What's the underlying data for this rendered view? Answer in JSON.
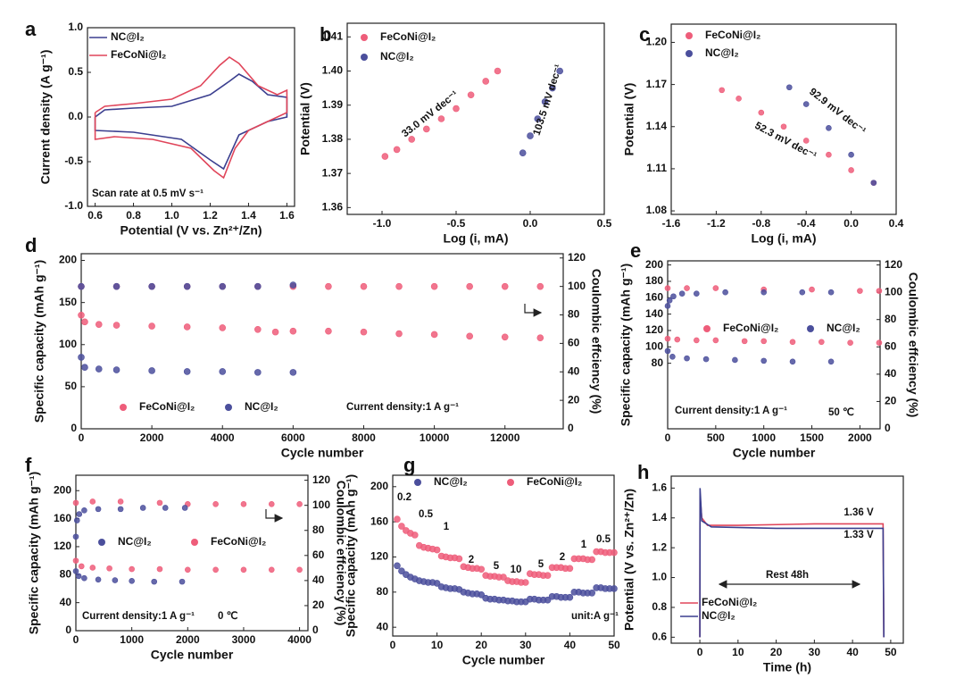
{
  "chart_data": [
    {
      "type": "line",
      "label": "a",
      "x_label": "Potential (V vs. Zn²⁺/Zn)",
      "y_label": "Current density (A g⁻¹)",
      "xlim": [
        0.56,
        1.64
      ],
      "xticks": [
        0.6,
        0.8,
        {
          "value": 1.0,
          "label": "1.0"
        },
        1.2,
        1.4,
        1.6
      ],
      "ylim": [
        -1.0,
        1.0
      ],
      "yticks": [
        {
          "value": -1.0,
          "label": "-1.0"
        },
        -0.5,
        {
          "value": 0.0,
          "label": "0.0"
        },
        0.5,
        {
          "value": 1.0,
          "label": "1.0"
        }
      ],
      "annotations": [
        "Scan rate at 0.5 mV s⁻¹"
      ],
      "series": [
        {
          "name": "NC@I₂",
          "color": "#3b3f8f",
          "x": [
            0.6,
            0.65,
            0.8,
            1.0,
            1.2,
            1.3,
            1.35,
            1.42,
            1.5,
            1.6,
            1.6,
            1.5,
            1.35,
            1.27,
            1.2,
            1.05,
            0.8,
            0.6,
            0.6
          ],
          "values": [
            0.0,
            0.08,
            0.1,
            0.12,
            0.25,
            0.4,
            0.48,
            0.4,
            0.25,
            0.22,
            0.0,
            -0.05,
            -0.2,
            -0.58,
            -0.48,
            -0.25,
            -0.17,
            -0.15,
            0.0
          ]
        },
        {
          "name": "FeCoNi@I₂",
          "color": "#e0455a",
          "x": [
            0.6,
            0.65,
            0.8,
            1.0,
            1.15,
            1.25,
            1.3,
            1.35,
            1.45,
            1.55,
            1.6,
            1.6,
            1.5,
            1.4,
            1.33,
            1.27,
            1.22,
            1.1,
            0.9,
            0.7,
            0.6,
            0.6
          ],
          "values": [
            0.05,
            0.12,
            0.15,
            0.2,
            0.35,
            0.58,
            0.67,
            0.6,
            0.35,
            0.25,
            0.3,
            0.05,
            -0.05,
            -0.15,
            -0.35,
            -0.68,
            -0.6,
            -0.35,
            -0.25,
            -0.22,
            -0.25,
            0.05
          ]
        }
      ]
    },
    {
      "type": "scatter",
      "label": "b",
      "x_label": "Log (i, mA)",
      "y_label": "Potential (V)",
      "xlim": [
        -1.235,
        0.5
      ],
      "xticks": [
        {
          "value": -1.0,
          "label": "-1.0"
        },
        -0.5,
        {
          "value": 0.0,
          "label": "0.0"
        },
        0.5
      ],
      "ylim": [
        1.358,
        1.414
      ],
      "yticks": [
        1.36,
        1.37,
        1.38,
        1.39,
        {
          "value": 1.4,
          "label": "1.40"
        },
        1.41
      ],
      "annotations": [
        "33.0 mV dec⁻¹",
        "103.5 mV dec⁻¹"
      ],
      "series": [
        {
          "name": "FeCoNi@I₂",
          "color": "#ee5d7a",
          "x": [
            -0.98,
            -0.9,
            -0.8,
            -0.7,
            -0.6,
            -0.5,
            -0.4,
            -0.3,
            -0.22
          ],
          "values": [
            1.375,
            1.377,
            1.38,
            1.383,
            1.386,
            1.389,
            1.393,
            1.397,
            1.4
          ]
        },
        {
          "name": "NC@I₂",
          "color": "#4b4f9c",
          "x": [
            -0.05,
            0.0,
            0.05,
            0.1,
            0.15,
            0.2
          ],
          "values": [
            1.376,
            1.381,
            1.386,
            1.391,
            1.395,
            1.4
          ]
        }
      ]
    },
    {
      "type": "scatter",
      "label": "c",
      "x_label": "Log (i, mA)",
      "y_label": "Potential (V)",
      "xlim": [
        -1.6,
        0.4
      ],
      "xticks": [
        -1.6,
        -1.2,
        -0.8,
        -0.4,
        {
          "value": 0.0,
          "label": "0.0"
        },
        0.4
      ],
      "ylim": [
        1.0775,
        1.213
      ],
      "yticks": [
        1.08,
        1.11,
        1.14,
        1.17,
        {
          "value": 1.2,
          "label": "1.20"
        }
      ],
      "annotations": [
        "92.9 mV dec⁻¹",
        "52.3 mV dec⁻¹"
      ],
      "series": [
        {
          "name": "FeCoNi@I₂",
          "color": "#ee5d7a",
          "x": [
            -1.15,
            -1.0,
            -0.8,
            -0.6,
            -0.4,
            -0.2,
            0.0,
            0.2
          ],
          "values": [
            1.166,
            1.16,
            1.15,
            1.14,
            1.13,
            1.12,
            1.109,
            1.1
          ]
        },
        {
          "name": "NC@I₂",
          "color": "#4b4f9c",
          "x": [
            -0.55,
            -0.4,
            -0.2,
            0.0,
            0.2
          ],
          "values": [
            1.168,
            1.156,
            1.139,
            1.12,
            1.1
          ]
        }
      ]
    },
    {
      "type": "scatter",
      "label": "d",
      "x_label": "Cycle number",
      "y_label": "Specific capacity (mAh g⁻¹)",
      "y2_label": "Coulombic effciency (%)",
      "xlim": [
        0,
        13650
      ],
      "xticks": [
        0,
        2000,
        4000,
        6000,
        8000,
        10000,
        12000
      ],
      "ylim": [
        0,
        208
      ],
      "yticks": [
        0,
        50,
        100,
        150,
        200
      ],
      "y2lim": [
        0,
        123
      ],
      "y2ticks": [
        0,
        20,
        40,
        60,
        80,
        100,
        120
      ],
      "annotations": [
        "Current density:1 A g⁻¹"
      ],
      "series": [
        {
          "name": "FeCoNi@I₂",
          "color": "#ee5d7a",
          "x": [
            0,
            100,
            500,
            1000,
            2000,
            3000,
            4000,
            5000,
            5500,
            6000,
            7000,
            8000,
            9000,
            10000,
            11000,
            12000,
            13000
          ],
          "values": [
            135,
            127,
            124,
            123,
            122,
            121,
            120,
            118,
            115,
            116,
            116,
            115,
            113,
            112,
            110,
            109,
            108
          ]
        },
        {
          "name": "NC@I₂",
          "color": "#4b4f9c",
          "x": [
            0,
            100,
            500,
            1000,
            2000,
            3000,
            4000,
            5000,
            6000
          ],
          "values": [
            85,
            73,
            71,
            70,
            69,
            68,
            68,
            67,
            67
          ]
        },
        {
          "color": "#ee5d7a",
          "axis": "y2",
          "x": [
            0,
            1000,
            2000,
            3000,
            4000,
            5000,
            6000,
            7000,
            8000,
            9000,
            10000,
            11000,
            12000,
            13000
          ],
          "values": [
            100,
            100,
            100,
            100,
            100,
            100,
            100,
            100,
            100,
            100,
            100,
            100,
            100,
            100
          ]
        },
        {
          "color": "#4b4f9c",
          "axis": "y2",
          "x": [
            0,
            1000,
            2000,
            3000,
            4000,
            5000,
            6000
          ],
          "values": [
            100,
            100,
            100,
            100,
            100,
            100,
            101
          ]
        }
      ]
    },
    {
      "type": "scatter",
      "label": "e",
      "x_label": "Cycle number",
      "y_label": "Specific capacity (mAh g⁻¹)",
      "y2_label": "Coulombic effciency (%)",
      "xlim": [
        0,
        2210
      ],
      "xticks": [
        0,
        500,
        1000,
        1500,
        2000
      ],
      "ylim": [
        0,
        205
      ],
      "yticks": [
        80,
        100,
        120,
        140,
        160,
        180,
        200
      ],
      "y2lim": [
        0,
        123
      ],
      "y2ticks": [
        0,
        20,
        40,
        60,
        80,
        100,
        120
      ],
      "annotations": [
        "Current density:1 A g⁻¹",
        "50 ℃"
      ],
      "series": [
        {
          "name": "FeCoNi@I₂",
          "color": "#ee5d7a",
          "x": [
            0,
            100,
            300,
            500,
            800,
            1000,
            1300,
            1600,
            1900,
            2200
          ],
          "values": [
            110,
            109,
            108,
            108,
            107,
            107,
            106,
            106,
            105,
            105
          ]
        },
        {
          "name": "NC@I₂",
          "color": "#4b4f9c",
          "x": [
            0,
            50,
            200,
            400,
            700,
            1000,
            1300,
            1700
          ],
          "values": [
            95,
            88,
            86,
            85,
            84,
            83,
            82,
            82
          ]
        },
        {
          "color": "#ee5d7a",
          "axis": "y2",
          "x": [
            0,
            200,
            500,
            1000,
            1500,
            2000,
            2200
          ],
          "values": [
            103,
            103,
            103,
            102,
            102,
            101,
            101
          ]
        },
        {
          "color": "#4b4f9c",
          "axis": "y2",
          "x": [
            0,
            20,
            60,
            150,
            300,
            600,
            1000,
            1400,
            1700
          ],
          "values": [
            90,
            94,
            97,
            99,
            99,
            100,
            100,
            100,
            100
          ]
        }
      ]
    },
    {
      "type": "scatter",
      "label": "f",
      "x_label": "Cycle number",
      "y_label": "Specific capacity (mAh g⁻¹)",
      "y2_label": "Coulombic effciency (%)",
      "xlim": [
        0,
        4150
      ],
      "xticks": [
        0,
        1000,
        2000,
        3000,
        4000
      ],
      "ylim": [
        0,
        222
      ],
      "yticks": [
        0,
        40,
        80,
        120,
        160,
        200
      ],
      "y2lim": [
        0,
        124
      ],
      "y2ticks": [
        0,
        20,
        40,
        60,
        80,
        100,
        120
      ],
      "annotations": [
        "Current density:1 A g⁻¹",
        "0 ℃"
      ],
      "series": [
        {
          "name": "NC@I₂",
          "color": "#4b4f9c",
          "x": [
            0,
            50,
            150,
            400,
            700,
            1000,
            1400,
            1900
          ],
          "values": [
            85,
            78,
            75,
            73,
            72,
            71,
            70,
            70
          ]
        },
        {
          "name": "FeCoNi@I₂",
          "color": "#ee5d7a",
          "x": [
            0,
            100,
            300,
            600,
            1000,
            1500,
            2000,
            2500,
            3000,
            3500,
            4000
          ],
          "values": [
            100,
            92,
            90,
            89,
            88,
            88,
            87,
            87,
            87,
            87,
            87
          ]
        },
        {
          "color": "#ee5d7a",
          "axis": "y2",
          "x": [
            0,
            300,
            800,
            1500,
            2000,
            2500,
            3000,
            3500,
            4000
          ],
          "values": [
            102,
            103,
            103,
            102,
            101,
            101,
            101,
            101,
            101
          ]
        },
        {
          "color": "#4b4f9c",
          "axis": "y2",
          "x": [
            0,
            20,
            60,
            150,
            400,
            800,
            1200,
            1600,
            1950
          ],
          "values": [
            75,
            88,
            93,
            96,
            97,
            97,
            98,
            98,
            98
          ]
        }
      ]
    },
    {
      "type": "scatter",
      "label": "g",
      "x_label": "Cycle number",
      "y_label": "Specific capacity (mAh g⁻¹)",
      "xlim": [
        0,
        50
      ],
      "xticks": [
        0,
        10,
        20,
        30,
        40,
        50
      ],
      "ylim": [
        30,
        213
      ],
      "yticks": [
        40,
        80,
        120,
        160,
        200
      ],
      "annotations": [
        "unit:A g⁻¹"
      ],
      "rate_labels": [
        "0.2",
        "0.5",
        "1",
        "2",
        "5",
        "10",
        "5",
        "2",
        "1",
        "0.5"
      ],
      "x": [
        1,
        2,
        3,
        4,
        5,
        6,
        7,
        8,
        9,
        10,
        11,
        12,
        13,
        14,
        15,
        16,
        17,
        18,
        19,
        20,
        21,
        22,
        23,
        24,
        25,
        26,
        27,
        28,
        29,
        30,
        31,
        32,
        33,
        34,
        35,
        36,
        37,
        38,
        39,
        40,
        41,
        42,
        43,
        44,
        45,
        46,
        47,
        48,
        49,
        50
      ],
      "series": [
        {
          "name": "NC@I₂",
          "color": "#4b4f9c",
          "values": [
            110,
            104,
            100,
            97,
            95,
            93,
            92,
            91,
            91,
            90,
            86,
            85,
            84,
            84,
            83,
            80,
            79,
            78,
            78,
            77,
            73,
            72,
            72,
            71,
            71,
            70,
            70,
            69,
            69,
            69,
            72,
            72,
            71,
            71,
            71,
            75,
            75,
            74,
            74,
            74,
            80,
            80,
            79,
            79,
            79,
            85,
            85,
            84,
            84,
            84
          ]
        },
        {
          "name": "FeCoNi@I₂",
          "color": "#ee5d7a",
          "values": [
            163,
            155,
            150,
            147,
            145,
            133,
            131,
            130,
            129,
            128,
            121,
            120,
            119,
            119,
            118,
            109,
            108,
            107,
            107,
            106,
            99,
            98,
            98,
            97,
            97,
            93,
            92,
            92,
            91,
            91,
            101,
            100,
            100,
            99,
            99,
            108,
            108,
            108,
            107,
            107,
            118,
            118,
            118,
            117,
            117,
            126,
            126,
            125,
            125,
            125
          ]
        }
      ]
    },
    {
      "type": "line",
      "label": "h",
      "x_label": "Time (h)",
      "y_label": "Potential (V vs. Zn²⁺/Zn)",
      "xlim": [
        -7.5,
        53.3
      ],
      "xticks": [
        0,
        10,
        20,
        30,
        40,
        50
      ],
      "ylim": [
        0.56,
        1.68
      ],
      "yticks": [
        0.6,
        0.8,
        {
          "value": 1.0,
          "label": "1.0"
        },
        1.2,
        1.4,
        1.6
      ],
      "annotations": [
        "1.36 V",
        "1.33 V",
        "Rest 48h"
      ],
      "series": [
        {
          "name": "FeCoNi@I₂",
          "color": "#e0455a",
          "x": [
            0,
            0.05,
            0.5,
            2,
            10,
            30,
            48,
            48.2
          ],
          "values": [
            0.6,
            1.55,
            1.4,
            1.35,
            1.35,
            1.36,
            1.36,
            0.6
          ]
        },
        {
          "name": "NC@I₂",
          "color": "#3b3f8f",
          "x": [
            0,
            0.05,
            0.5,
            3,
            20,
            48,
            48.2
          ],
          "values": [
            0.6,
            1.6,
            1.38,
            1.34,
            1.33,
            1.33,
            0.6
          ]
        }
      ]
    }
  ]
}
